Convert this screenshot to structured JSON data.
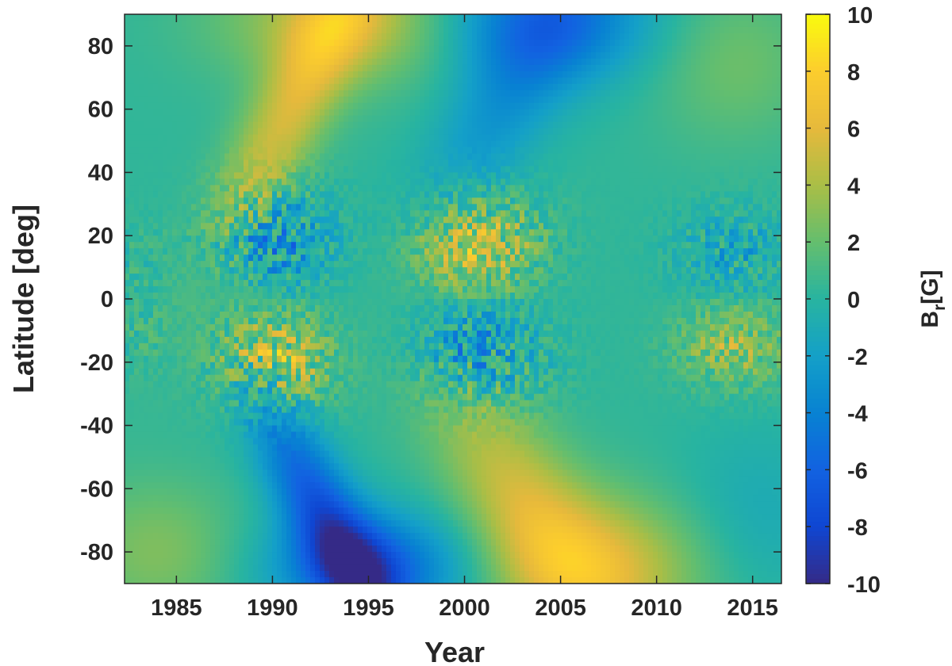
{
  "chart_data": {
    "type": "heatmap",
    "xlabel": "Year",
    "ylabel": "Latitude [deg]",
    "colorbar_label": "B_r [G]",
    "colorbar_label_main": "B",
    "colorbar_label_sub": "r",
    "colorbar_label_unit": "[G]",
    "xlim": [
      1982.3,
      2016.5
    ],
    "ylim": [
      -90,
      90
    ],
    "clim": [
      -10,
      10
    ],
    "colormap": "parula",
    "x_ticks": [
      1985,
      1990,
      1995,
      2000,
      2005,
      2010,
      2015
    ],
    "x_tick_labels": [
      "1985",
      "1990",
      "1995",
      "2000",
      "2005",
      "2010",
      "2015"
    ],
    "y_ticks": [
      80,
      60,
      40,
      20,
      0,
      -20,
      -40,
      -60,
      -80
    ],
    "y_tick_labels": [
      "80",
      "60",
      "40",
      "20",
      "0",
      "-20",
      "-40",
      "-60",
      "-80"
    ],
    "colorbar_ticks": [
      10,
      8,
      6,
      4,
      2,
      0,
      -2,
      -4,
      -6,
      -8,
      -10
    ],
    "colorbar_tick_labels": [
      "10",
      "8",
      "6",
      "4",
      "2",
      "0",
      "-2",
      "-4",
      "-6",
      "-8",
      "-10"
    ],
    "colors": {
      "axis": "#262626",
      "background": "#ffffff"
    },
    "features": [
      {
        "year_start": 1982.3,
        "year_end": 1986.5,
        "lat_center": -75,
        "value": 2.0
      },
      {
        "year_start": 1988.0,
        "year_end": 1994.0,
        "lat_center": 65,
        "value": 5.0
      },
      {
        "year_start": 1991.0,
        "year_end": 1995.5,
        "lat_center": 85,
        "value": 5.5
      },
      {
        "year_start": 1992.0,
        "year_end": 1999.0,
        "lat_center": -80,
        "value": -7.5
      },
      {
        "year_start": 2000.0,
        "year_end": 2007.0,
        "lat_center": 80,
        "value": -6.0
      },
      {
        "year_start": 2003.0,
        "year_end": 2010.0,
        "lat_center": -80,
        "value": 5.0
      },
      {
        "year_start": 1998.0,
        "year_end": 2003.0,
        "lat_center": 18,
        "value": 6.0
      },
      {
        "year_start": 1988.5,
        "year_end": 1992.5,
        "lat_center": -20,
        "value": 6.0
      },
      {
        "year_start": 1988.5,
        "year_end": 1992.0,
        "lat_center": 20,
        "value": -5.0
      },
      {
        "year_start": 1999.0,
        "year_end": 2003.0,
        "lat_center": -18,
        "value": -4.5
      },
      {
        "year_start": 2011.0,
        "year_end": 2016.5,
        "lat_center": -12,
        "value": 4.0
      },
      {
        "year_start": 2011.0,
        "year_end": 2016.5,
        "lat_center": 18,
        "value": -2.5
      }
    ]
  }
}
